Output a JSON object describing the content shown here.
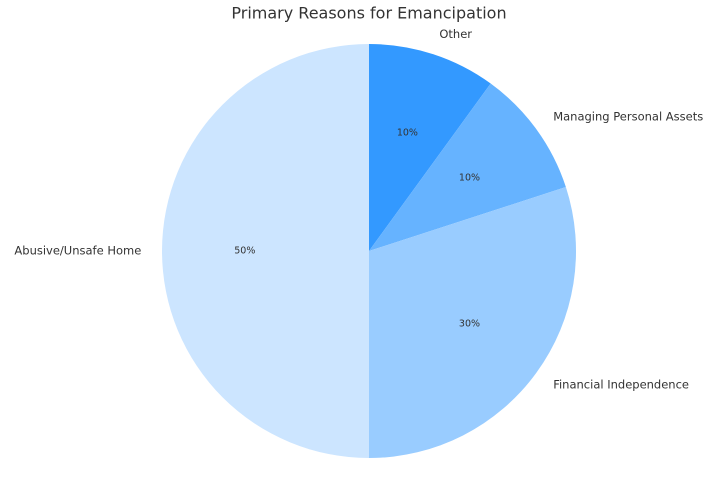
{
  "chart_data": {
    "type": "pie",
    "title": "Primary Reasons for Emancipation",
    "categories": [
      "Other",
      "Managing Personal Assets",
      "Financial Independence",
      "Abusive/Unsafe Home"
    ],
    "values": [
      10,
      10,
      30,
      50
    ],
    "value_labels": [
      "10%",
      "10%",
      "30%",
      "50%"
    ],
    "colors": [
      "#3399ff",
      "#66b3ff",
      "#99ccff",
      "#cce5ff"
    ]
  }
}
